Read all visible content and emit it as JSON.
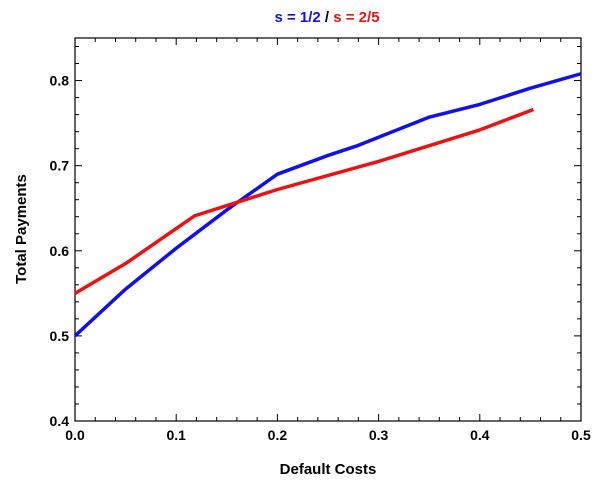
{
  "chart_data": {
    "type": "line",
    "title_parts": [
      {
        "text": "s = 1/2",
        "color": "#1010ee"
      },
      {
        "text": " / ",
        "color": "#000000"
      },
      {
        "text": "s = 2/5",
        "color": "#ee1111"
      }
    ],
    "xlabel": "Default Costs",
    "ylabel": "Total Payments",
    "xlim": [
      0.0,
      0.5
    ],
    "ylim": [
      0.4,
      0.85
    ],
    "xticks": [
      "0.0",
      "0.1",
      "0.2",
      "0.3",
      "0.4",
      "0.5"
    ],
    "yticks": [
      "0.4",
      "0.5",
      "0.6",
      "0.7",
      "0.8"
    ],
    "grid": false,
    "series": [
      {
        "color": "#1010ee",
        "x": [
          0.0,
          0.05,
          0.1,
          0.15,
          0.2,
          0.25,
          0.278,
          0.35,
          0.4,
          0.45,
          0.5
        ],
        "y": [
          0.5,
          0.555,
          0.603,
          0.648,
          0.69,
          0.712,
          0.723,
          0.757,
          0.772,
          0.791,
          0.808
        ]
      },
      {
        "color": "#ee1111",
        "x": [
          0.0,
          0.05,
          0.118,
          0.2,
          0.3,
          0.4,
          0.453
        ],
        "y": [
          0.55,
          0.585,
          0.641,
          0.672,
          0.705,
          0.742,
          0.766
        ]
      }
    ]
  }
}
